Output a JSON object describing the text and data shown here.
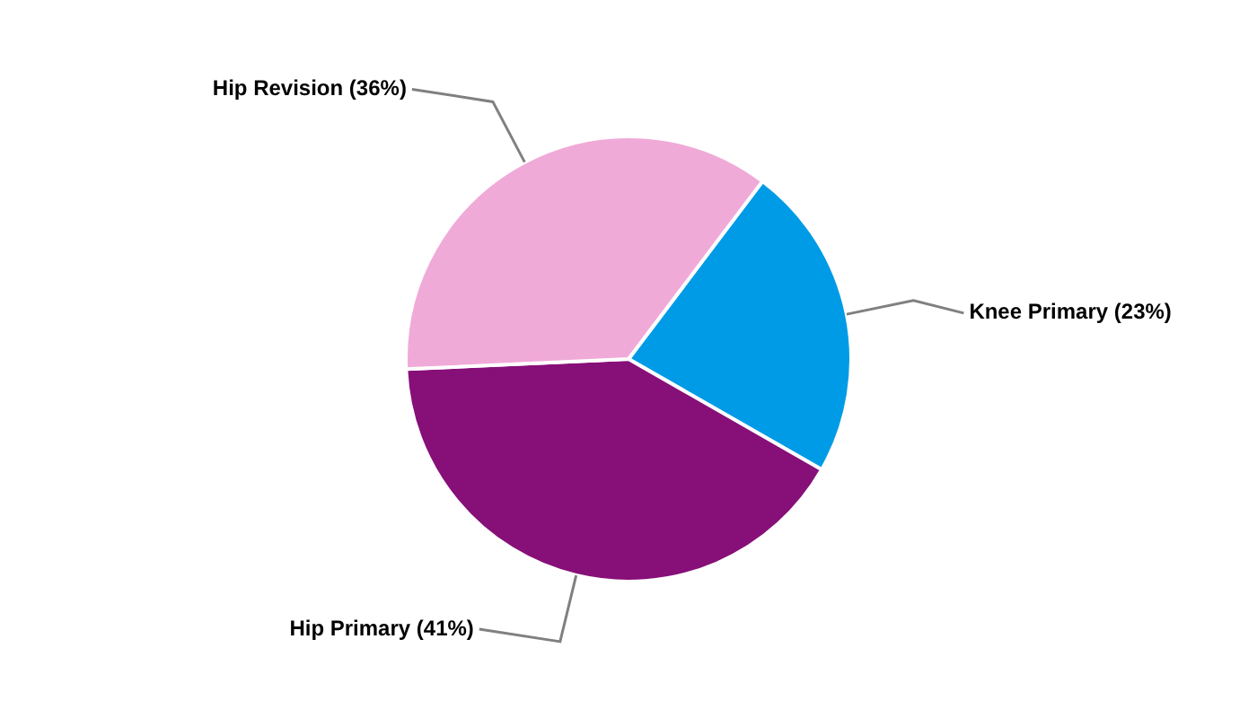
{
  "chart_data": {
    "type": "pie",
    "categories": [
      "Knee Primary (23%)",
      "Hip Primary (41%)",
      "Hip Revision (36%)"
    ],
    "values": [
      23,
      41,
      36
    ],
    "colors": [
      "#009be6",
      "#870f78",
      "#f0aad8"
    ],
    "legend": false
  }
}
